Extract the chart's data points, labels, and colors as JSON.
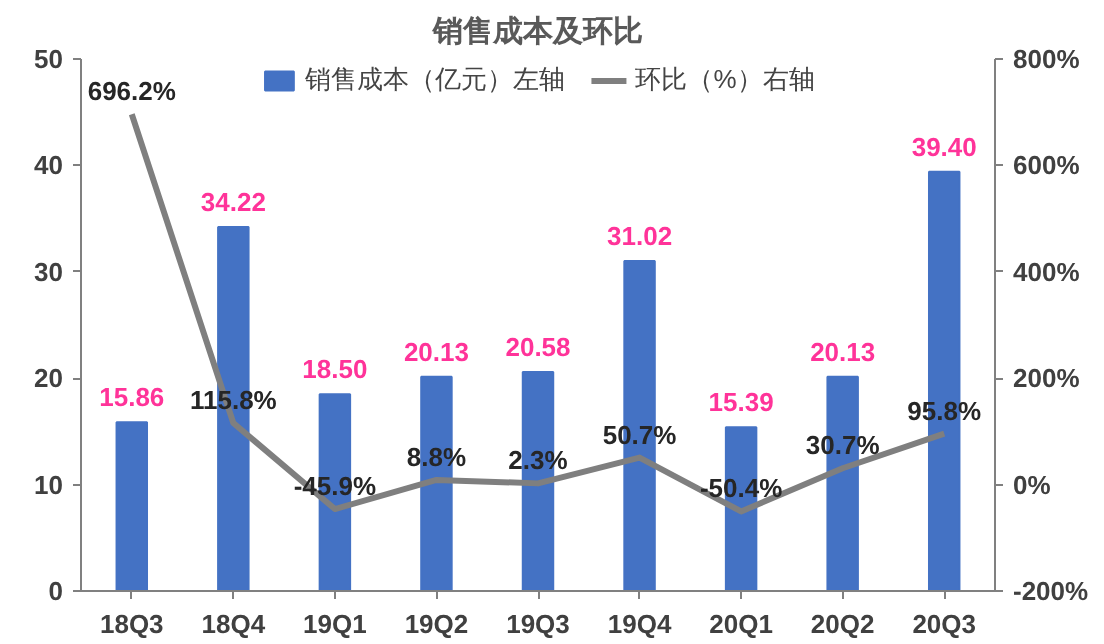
{
  "chart_data": {
    "type": "bar",
    "title": "销售成本及环比",
    "categories": [
      "18Q3",
      "18Q4",
      "19Q1",
      "19Q2",
      "19Q3",
      "19Q4",
      "20Q1",
      "20Q2",
      "20Q3"
    ],
    "series": [
      {
        "name": "销售成本（亿元）左轴",
        "color": "#4472c4",
        "values": [
          15.86,
          34.22,
          18.5,
          20.13,
          20.58,
          31.02,
          15.39,
          20.13,
          39.4
        ],
        "value_labels": [
          "15.86",
          "34.22",
          "18.50",
          "20.13",
          "20.58",
          "31.02",
          "15.39",
          "20.13",
          "39.40"
        ]
      },
      {
        "name": "环比（%）右轴",
        "type": "line",
        "axis": "y2",
        "color": "#7f7f7f",
        "values": [
          696.2,
          115.8,
          -45.9,
          8.8,
          2.3,
          50.7,
          -50.4,
          30.7,
          95.8
        ],
        "value_labels": [
          "696.2%",
          "115.8%",
          "-45.9%",
          "8.8%",
          "2.3%",
          "50.7%",
          "-50.4%",
          "30.7%",
          "95.8%"
        ]
      }
    ],
    "ylim": [
      0,
      50
    ],
    "yticks": [
      0,
      10,
      20,
      30,
      40,
      50
    ],
    "y2lim": [
      -200,
      800
    ],
    "y2ticks": [
      {
        "value": -200,
        "label": "-200%"
      },
      {
        "value": 0,
        "label": "0%"
      },
      {
        "value": 200,
        "label": "200%"
      },
      {
        "value": 400,
        "label": "400%"
      },
      {
        "value": 600,
        "label": "600%"
      },
      {
        "value": 800,
        "label": "800%"
      }
    ],
    "legend": "top",
    "grid": false,
    "marker": "none",
    "line_style": "solid"
  }
}
